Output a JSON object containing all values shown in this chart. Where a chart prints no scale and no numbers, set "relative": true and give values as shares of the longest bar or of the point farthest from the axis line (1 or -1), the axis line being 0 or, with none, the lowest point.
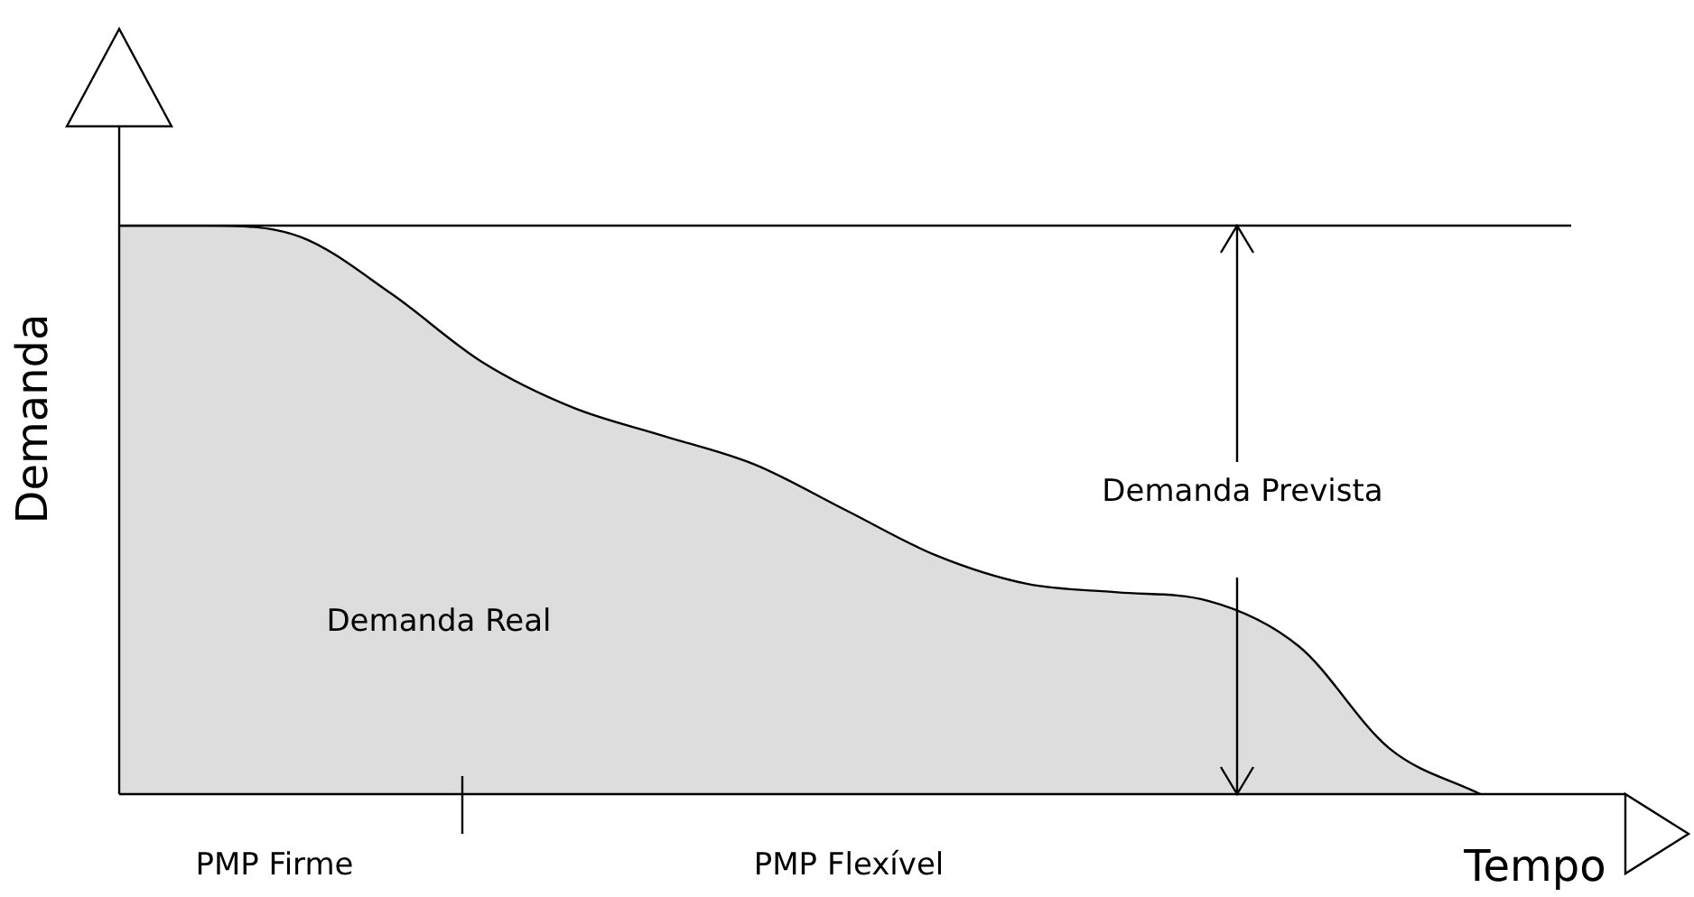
{
  "chart_data": {
    "type": "area",
    "relative": true,
    "xlabel": "Tempo",
    "ylabel": "Demanda",
    "categories": [
      null,
      null,
      null,
      null,
      null,
      null,
      null,
      null,
      null,
      null,
      null,
      null,
      null,
      null,
      null,
      null,
      null
    ],
    "series": [
      {
        "color": "#000000",
        "values": [
          1,
          1,
          0.98,
          0.88,
          0.76,
          0.68,
          0.63,
          0.58,
          0.5,
          0.42,
          0.37,
          0.355,
          0.34,
          0.26,
          0.08,
          0,
          null
        ]
      }
    ],
    "ref_lines": [
      {
        "axis": "y",
        "value": 1,
        "color": "#000000"
      }
    ],
    "annotations": [
      "Demanda Real",
      "Demanda Prevista",
      "PMP Firme",
      "PMP Flexível"
    ],
    "legend": false,
    "grid": false,
    "marker": "none",
    "line_style": "solid"
  }
}
